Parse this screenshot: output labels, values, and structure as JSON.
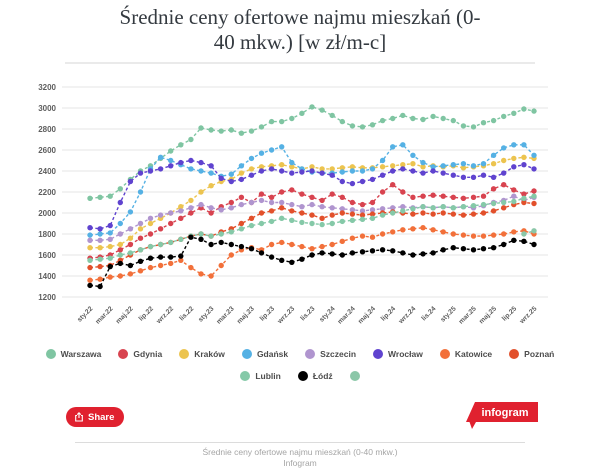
{
  "page": {
    "title_line1": "Średnie ceny ofertowe najmu mieszkań (0-",
    "title_line2": "40 mkw.) [w zł/m-c]"
  },
  "footer": {
    "share_label": "Share",
    "logo_text": "infogram",
    "caption_line1": "Średnie ceny ofertowe najmu mieszkań (0-40 mkw.)",
    "caption_line2": "Infogram"
  },
  "colors": {
    "accent_red": "#e0212f",
    "gridline": "#e4e4e4",
    "axis_text": "#5e5e5e"
  },
  "chart_data": {
    "type": "line",
    "title": "Średnie ceny ofertowe najmu mieszkań (0-40 mkw.) [w zł/m-c]",
    "xlabel": "",
    "ylabel": "",
    "ylim": [
      1200,
      3200
    ],
    "ytick_step": 200,
    "grid": true,
    "legend_position": "bottom",
    "line_style": "dashed_with_round_markers",
    "months_count": 45,
    "x_tick_labels": [
      "sty.22",
      "mar.22",
      "maj.22",
      "lip.22",
      "wrz.22",
      "lis.22",
      "sty.23",
      "mar.23",
      "maj.23",
      "lip.23",
      "wrz.23",
      "lis.23",
      "sty.24",
      "mar.24",
      "maj.24",
      "lip.24",
      "wrz.24",
      "lis.24",
      "sty.25",
      "mar.25",
      "maj.25",
      "lip.25",
      "wrz.25"
    ],
    "series": [
      {
        "name": "Warszawa",
        "color": "#7fc5a2",
        "values": [
          2140,
          2150,
          2160,
          2230,
          2320,
          2400,
          2450,
          2520,
          2590,
          2650,
          2700,
          2810,
          2790,
          2780,
          2790,
          2760,
          2780,
          2820,
          2870,
          2870,
          2900,
          2950,
          3010,
          2980,
          2930,
          2870,
          2830,
          2820,
          2840,
          2880,
          2900,
          2930,
          2900,
          2890,
          2920,
          2900,
          2880,
          2830,
          2820,
          2860,
          2880,
          2920,
          2950,
          2990,
          2970
        ]
      },
      {
        "name": "Gdynia",
        "color": "#d8434f",
        "values": [
          1570,
          1580,
          1600,
          1650,
          1700,
          1760,
          1800,
          1850,
          1900,
          1950,
          2000,
          2050,
          2000,
          2060,
          2100,
          2150,
          2100,
          2180,
          2150,
          2200,
          2220,
          2180,
          2150,
          2120,
          2180,
          2150,
          2100,
          2080,
          2100,
          2200,
          2270,
          2200,
          2150,
          2160,
          2170,
          2160,
          2150,
          2140,
          2150,
          2160,
          2230,
          2270,
          2220,
          2180,
          2210
        ]
      },
      {
        "name": "Kraków",
        "color": "#ecc44f",
        "values": [
          1670,
          1670,
          1680,
          1700,
          1760,
          1850,
          1900,
          1950,
          2000,
          2060,
          2120,
          2200,
          2260,
          2300,
          2320,
          2380,
          2420,
          2440,
          2450,
          2460,
          2440,
          2420,
          2440,
          2420,
          2420,
          2430,
          2440,
          2430,
          2430,
          2440,
          2450,
          2460,
          2470,
          2440,
          2450,
          2440,
          2450,
          2430,
          2440,
          2450,
          2470,
          2500,
          2520,
          2530,
          2520
        ]
      },
      {
        "name": "Gdańsk",
        "color": "#55b1e4",
        "values": [
          1790,
          1800,
          1810,
          1900,
          2010,
          2200,
          2420,
          2530,
          2500,
          2460,
          2420,
          2400,
          2380,
          2350,
          2370,
          2450,
          2520,
          2570,
          2600,
          2630,
          2480,
          2420,
          2390,
          2380,
          2380,
          2390,
          2400,
          2400,
          2420,
          2500,
          2630,
          2650,
          2550,
          2480,
          2440,
          2450,
          2460,
          2470,
          2450,
          2470,
          2550,
          2620,
          2650,
          2650,
          2550
        ]
      },
      {
        "name": "Szczecin",
        "color": "#b095cf",
        "values": [
          1740,
          1740,
          1750,
          1800,
          1850,
          1900,
          1950,
          1980,
          2000,
          2020,
          2050,
          2080,
          2050,
          2030,
          2050,
          2080,
          2100,
          2120,
          2100,
          2100,
          2080,
          2060,
          2080,
          2060,
          2050,
          2040,
          2030,
          2020,
          2030,
          2040,
          2050,
          2060,
          2050,
          2060,
          2050,
          2060,
          2050,
          2060,
          2050,
          2070,
          2100,
          2120,
          2160,
          2120,
          2150
        ]
      },
      {
        "name": "Wrocław",
        "color": "#5f43cf",
        "values": [
          1860,
          1850,
          1880,
          2100,
          2300,
          2380,
          2400,
          2420,
          2450,
          2480,
          2500,
          2480,
          2450,
          2330,
          2300,
          2320,
          2360,
          2400,
          2420,
          2400,
          2380,
          2390,
          2400,
          2380,
          2360,
          2300,
          2280,
          2300,
          2320,
          2360,
          2400,
          2420,
          2400,
          2380,
          2400,
          2380,
          2360,
          2340,
          2340,
          2360,
          2340,
          2380,
          2440,
          2460,
          2420
        ]
      },
      {
        "name": "Katowice",
        "color": "#f2703a",
        "values": [
          1360,
          1370,
          1390,
          1400,
          1420,
          1450,
          1480,
          1500,
          1520,
          1550,
          1480,
          1420,
          1400,
          1500,
          1600,
          1650,
          1670,
          1650,
          1700,
          1720,
          1700,
          1680,
          1660,
          1680,
          1700,
          1730,
          1760,
          1780,
          1770,
          1800,
          1820,
          1840,
          1850,
          1860,
          1840,
          1820,
          1800,
          1790,
          1780,
          1780,
          1790,
          1800,
          1820,
          1830,
          1800
        ]
      },
      {
        "name": "Poznań",
        "color": "#e2502b",
        "values": [
          1480,
          1490,
          1500,
          1550,
          1600,
          1650,
          1680,
          1700,
          1720,
          1750,
          1780,
          1800,
          1780,
          1820,
          1850,
          1900,
          1950,
          2000,
          2020,
          2050,
          2020,
          2000,
          1980,
          1950,
          1980,
          2000,
          1990,
          1980,
          1990,
          2000,
          2010,
          2000,
          1990,
          2000,
          1990,
          2000,
          1990,
          1980,
          1990,
          2000,
          2020,
          2050,
          2080,
          2100,
          2090
        ]
      },
      {
        "name": "Lublin",
        "color": "#85c9a8",
        "values": [
          1550,
          1560,
          1570,
          1600,
          1620,
          1650,
          1680,
          1700,
          1720,
          1750,
          1780,
          1800,
          1780,
          1800,
          1820,
          1850,
          1880,
          1900,
          1920,
          1950,
          1930,
          1910,
          1900,
          1890,
          1900,
          1920,
          1930,
          1940,
          1950,
          1980,
          2000,
          2020,
          2040,
          2060,
          2050,
          2060,
          2050,
          2060,
          2070,
          2080,
          2090,
          2100,
          2110,
          2140,
          2160
        ]
      },
      {
        "name": "Łódź",
        "color": "#000000",
        "values": [
          1310,
          1300,
          1490,
          1520,
          1500,
          1540,
          1570,
          1580,
          1580,
          1590,
          1770,
          1750,
          1700,
          1720,
          1700,
          1680,
          1660,
          1620,
          1580,
          1550,
          1530,
          1560,
          1600,
          1620,
          1610,
          1600,
          1620,
          1630,
          1640,
          1650,
          1640,
          1620,
          1600,
          1610,
          1620,
          1650,
          1670,
          1660,
          1650,
          1660,
          1670,
          1700,
          1740,
          1730,
          1700
        ]
      },
      {
        "name": "",
        "color": "#8bc7a8",
        "values": [
          null,
          null,
          null,
          null,
          null,
          null,
          null,
          null,
          null,
          null,
          null,
          null,
          null,
          null,
          null,
          null,
          null,
          null,
          null,
          null,
          null,
          null,
          null,
          null,
          null,
          null,
          null,
          null,
          null,
          null,
          null,
          null,
          null,
          null,
          null,
          null,
          null,
          null,
          null,
          null,
          null,
          null,
          null,
          1800,
          1830
        ]
      }
    ]
  }
}
